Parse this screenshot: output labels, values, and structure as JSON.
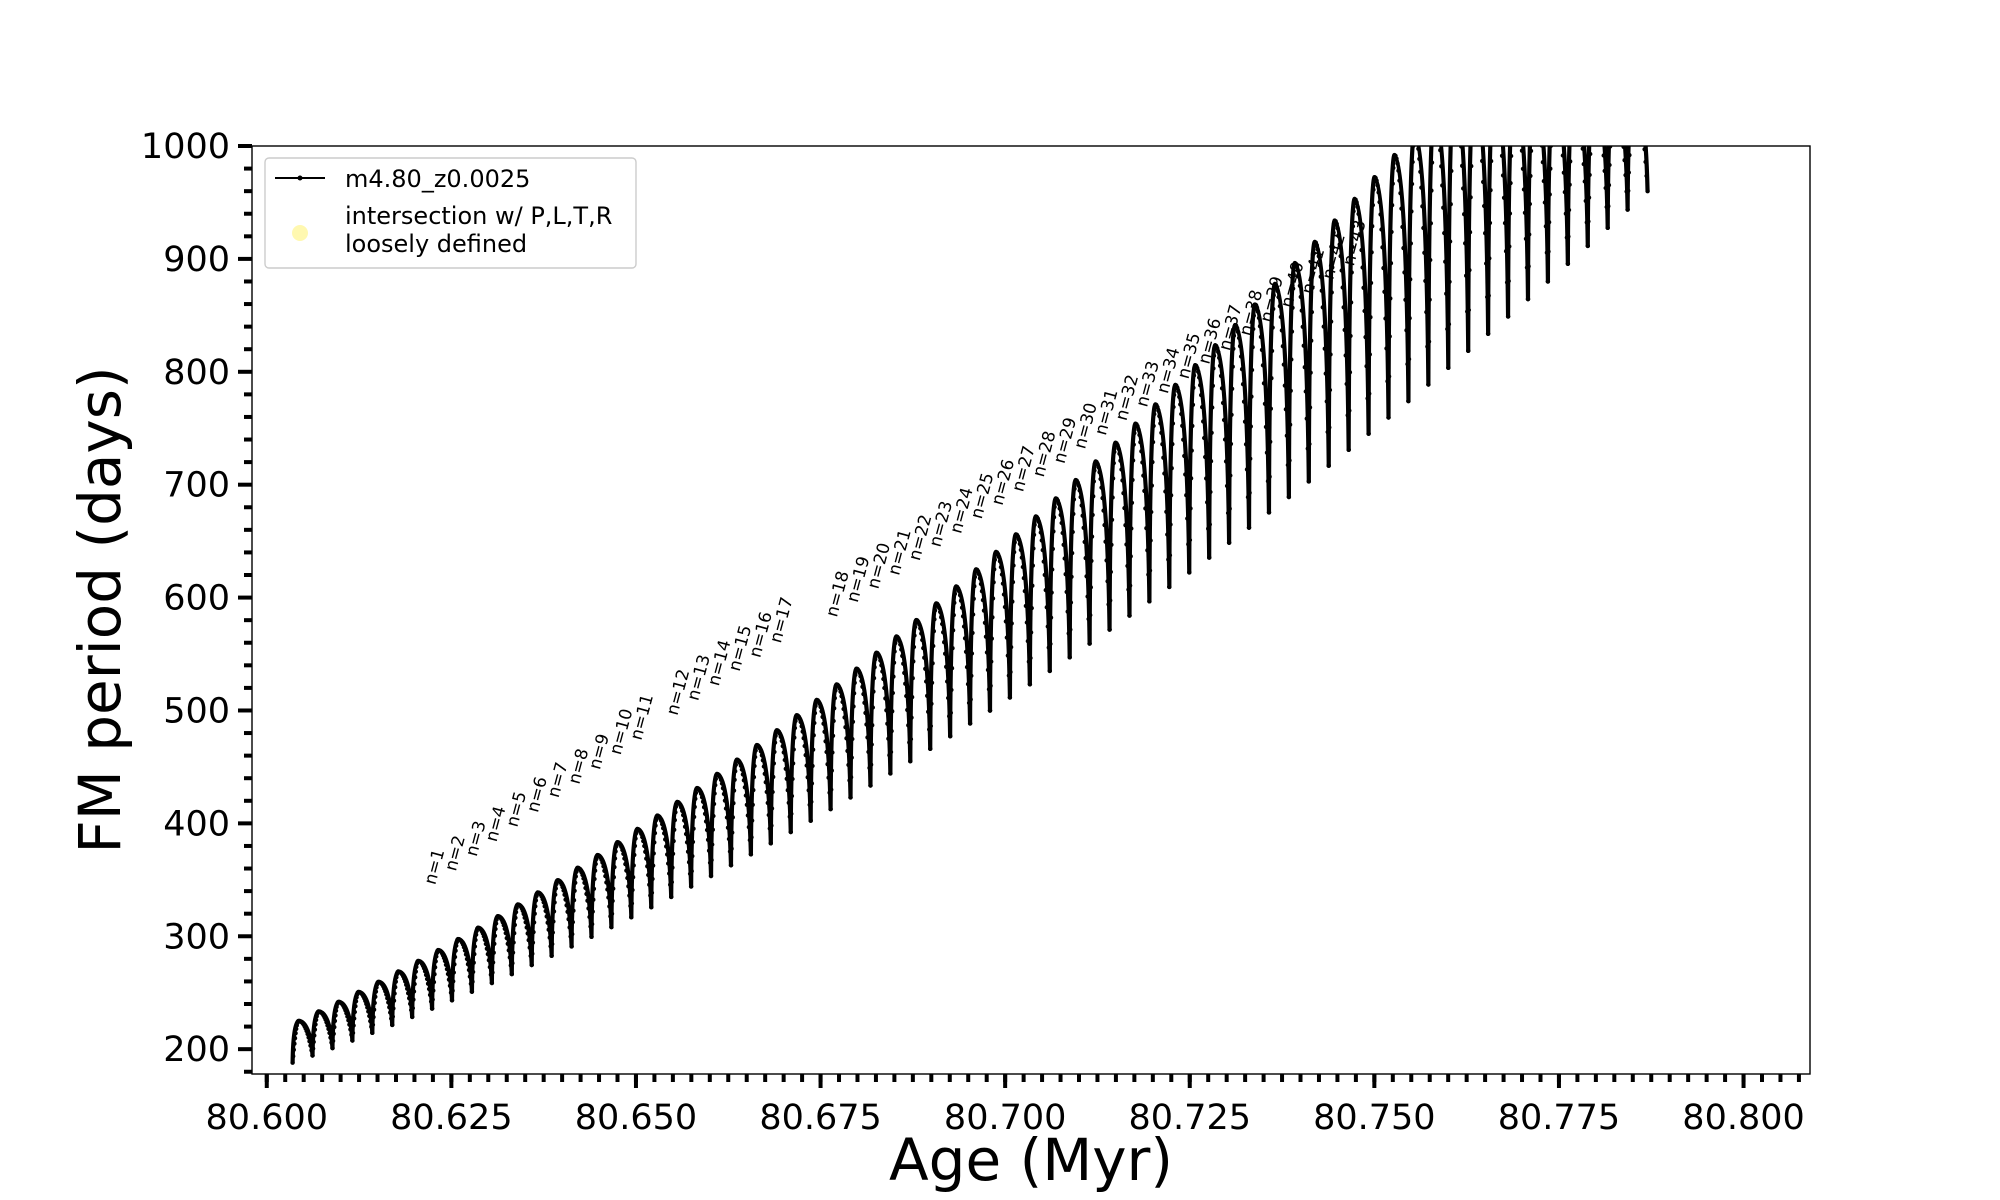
{
  "chart_data": {
    "type": "line",
    "title": "",
    "xlabel": "Age (Myr)",
    "ylabel": "FM period (days)",
    "xlim": [
      80.598,
      80.809
    ],
    "ylim": [
      178,
      1000
    ],
    "grid": false,
    "legend_position": "top-left",
    "x_ticks": [
      80.6,
      80.625,
      80.65,
      80.675,
      80.7,
      80.725,
      80.75,
      80.775,
      80.8
    ],
    "x_tick_labels": [
      "80.600",
      "80.625",
      "80.650",
      "80.675",
      "80.700",
      "80.725",
      "80.750",
      "80.775",
      "80.800"
    ],
    "y_ticks": [
      200,
      300,
      400,
      500,
      600,
      700,
      800,
      900,
      1000
    ],
    "y_tick_labels": [
      "200",
      "300",
      "400",
      "500",
      "600",
      "700",
      "800",
      "900",
      "1000"
    ],
    "legend": [
      {
        "label": "m4.80_z0.0025",
        "marker": "line-with-dots",
        "color": "#000000"
      },
      {
        "label": "intersection w/ P,L,T,R\nloosely defined",
        "marker": "circle",
        "color": "#fff8b0"
      }
    ],
    "series": [
      {
        "name": "m4.80_z0.0025",
        "description": "oscillating FM period track of repeated pulse cycles",
        "cycles_start_age": 80.6035,
        "cycles_end_age": 80.787,
        "cycle_count": 68,
        "peak_period_start": 225,
        "peak_period_at_80_757": 1000,
        "trough_period_start": 188,
        "trough_period_end": 960
      }
    ],
    "annotations": [
      {
        "text": "n=1",
        "x": 80.6228,
        "y": 345
      },
      {
        "text": "n=2",
        "x": 80.6256,
        "y": 357
      },
      {
        "text": "n=3",
        "x": 80.6284,
        "y": 370
      },
      {
        "text": "n=4",
        "x": 80.6311,
        "y": 383
      },
      {
        "text": "n=5",
        "x": 80.6339,
        "y": 396
      },
      {
        "text": "n=6",
        "x": 80.6367,
        "y": 409
      },
      {
        "text": "n=7",
        "x": 80.6395,
        "y": 422
      },
      {
        "text": "n=8",
        "x": 80.6423,
        "y": 434
      },
      {
        "text": "n=9",
        "x": 80.6451,
        "y": 447
      },
      {
        "text": "n=10",
        "x": 80.6479,
        "y": 460
      },
      {
        "text": "n=11",
        "x": 80.6507,
        "y": 473
      },
      {
        "text": "n=12",
        "x": 80.6556,
        "y": 495
      },
      {
        "text": "n=13",
        "x": 80.6584,
        "y": 508
      },
      {
        "text": "n=14",
        "x": 80.6612,
        "y": 521
      },
      {
        "text": "n=15",
        "x": 80.664,
        "y": 534
      },
      {
        "text": "n=16",
        "x": 80.6668,
        "y": 546
      },
      {
        "text": "n=17",
        "x": 80.6696,
        "y": 559
      },
      {
        "text": "n=18",
        "x": 80.6772,
        "y": 582
      },
      {
        "text": "n=19",
        "x": 80.68,
        "y": 595
      },
      {
        "text": "n=20",
        "x": 80.6828,
        "y": 607
      },
      {
        "text": "n=21",
        "x": 80.6856,
        "y": 619
      },
      {
        "text": "n=22",
        "x": 80.6884,
        "y": 632
      },
      {
        "text": "n=23",
        "x": 80.6912,
        "y": 644
      },
      {
        "text": "n=24",
        "x": 80.694,
        "y": 656
      },
      {
        "text": "n=25",
        "x": 80.6968,
        "y": 669
      },
      {
        "text": "n=26",
        "x": 80.6996,
        "y": 681
      },
      {
        "text": "n=27",
        "x": 80.7024,
        "y": 693
      },
      {
        "text": "n=28",
        "x": 80.7052,
        "y": 706
      },
      {
        "text": "n=29",
        "x": 80.708,
        "y": 718
      },
      {
        "text": "n=30",
        "x": 80.7108,
        "y": 731
      },
      {
        "text": "n=31",
        "x": 80.7136,
        "y": 743
      },
      {
        "text": "n=32",
        "x": 80.7164,
        "y": 756
      },
      {
        "text": "n=33",
        "x": 80.7192,
        "y": 768
      },
      {
        "text": "n=34",
        "x": 80.722,
        "y": 780
      },
      {
        "text": "n=35",
        "x": 80.7248,
        "y": 793
      },
      {
        "text": "n=36",
        "x": 80.7276,
        "y": 806
      },
      {
        "text": "n=37",
        "x": 80.7304,
        "y": 818
      },
      {
        "text": "n=38",
        "x": 80.7332,
        "y": 831
      },
      {
        "text": "n=39",
        "x": 80.736,
        "y": 843
      },
      {
        "text": "n=40",
        "x": 80.7388,
        "y": 856
      },
      {
        "text": "n=41",
        "x": 80.7416,
        "y": 868
      },
      {
        "text": "n=42",
        "x": 80.7444,
        "y": 881
      },
      {
        "text": "n=43",
        "x": 80.7472,
        "y": 893
      }
    ]
  }
}
